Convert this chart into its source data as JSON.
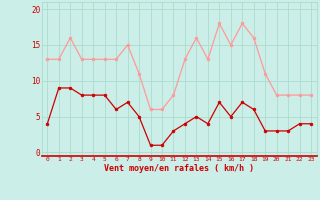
{
  "x": [
    0,
    1,
    2,
    3,
    4,
    5,
    6,
    7,
    8,
    9,
    10,
    11,
    12,
    13,
    14,
    15,
    16,
    17,
    18,
    19,
    20,
    21,
    22,
    23
  ],
  "avg_wind": [
    4,
    9,
    9,
    8,
    8,
    8,
    6,
    7,
    5,
    1,
    1,
    3,
    4,
    5,
    4,
    7,
    5,
    7,
    6,
    3,
    3,
    3,
    4,
    4
  ],
  "gust_wind": [
    13,
    13,
    16,
    13,
    13,
    13,
    13,
    15,
    11,
    6,
    6,
    8,
    13,
    16,
    13,
    18,
    15,
    18,
    16,
    11,
    8,
    8,
    8,
    8
  ],
  "bg_color": "#cceee8",
  "grid_color": "#aaddcc",
  "avg_color": "#cc0000",
  "gust_color": "#ff9999",
  "xlabel": "Vent moyen/en rafales ( km/h )",
  "xlabel_color": "#cc0000",
  "ylabel_ticks": [
    0,
    5,
    10,
    15,
    20
  ],
  "ylim": [
    -0.5,
    21
  ],
  "xlim": [
    -0.5,
    23.5
  ]
}
